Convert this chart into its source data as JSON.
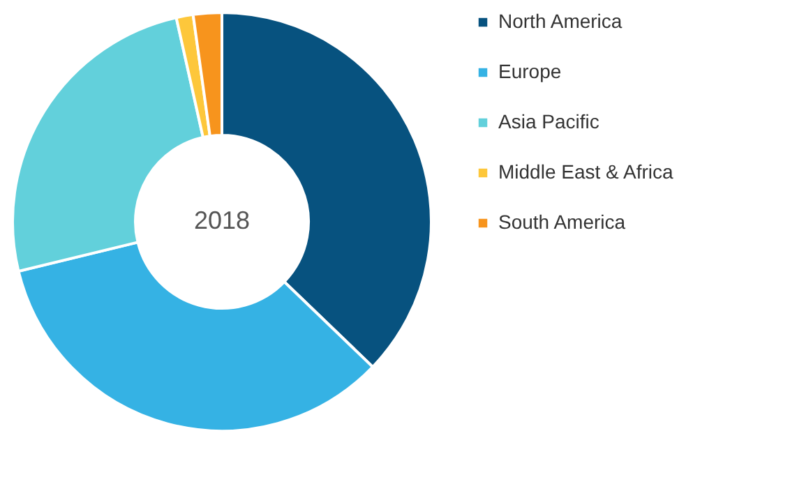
{
  "chart_data": {
    "type": "donut",
    "categories": [
      "North America",
      "Europe",
      "Asia Pacific",
      "Middle East & Africa",
      "South America"
    ],
    "values": [
      37.2,
      34,
      25.3,
      1.3,
      2.2
    ],
    "colors": [
      "#07527f",
      "#35b2e4",
      "#62d0db",
      "#fdc73b",
      "#f7941d"
    ],
    "annotations": [
      "2018"
    ],
    "legend": "right"
  }
}
